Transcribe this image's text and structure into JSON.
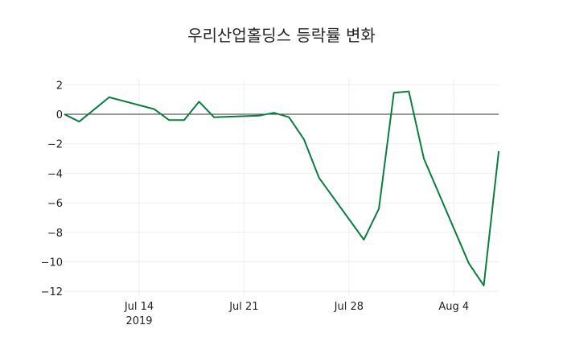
{
  "chart_data": {
    "type": "line",
    "title": "우리산업홀딩스 등락률 변화",
    "xlabel": "",
    "ylabel": "",
    "ylim": [
      -12.2,
      2.6
    ],
    "xlim": [
      "2019-07-09",
      "2019-08-07"
    ],
    "grid": true,
    "legend": "none",
    "line_color": "#0a7d3e",
    "x_ticks": [
      {
        "date": "2019-07-14",
        "label": "Jul 14",
        "sublabel": "2019"
      },
      {
        "date": "2019-07-21",
        "label": "Jul 21",
        "sublabel": ""
      },
      {
        "date": "2019-07-28",
        "label": "Jul 28",
        "sublabel": ""
      },
      {
        "date": "2019-08-04",
        "label": "Aug 4",
        "sublabel": ""
      }
    ],
    "y_ticks": [
      2,
      0,
      -2,
      -4,
      -6,
      -8,
      -10,
      -12
    ],
    "y_tick_labels": [
      "2",
      "0",
      "−2",
      "−4",
      "−6",
      "−8",
      "−10",
      "−12"
    ],
    "series": [
      {
        "name": "등락률",
        "x": [
          "2019-07-09",
          "2019-07-10",
          "2019-07-12",
          "2019-07-15",
          "2019-07-16",
          "2019-07-17",
          "2019-07-18",
          "2019-07-19",
          "2019-07-22",
          "2019-07-23",
          "2019-07-24",
          "2019-07-25",
          "2019-07-26",
          "2019-07-29",
          "2019-07-30",
          "2019-07-31",
          "2019-08-01",
          "2019-08-02",
          "2019-08-05",
          "2019-08-06",
          "2019-08-07"
        ],
        "values": [
          0.0,
          -0.5,
          1.15,
          0.35,
          -0.4,
          -0.4,
          0.85,
          -0.2,
          -0.1,
          0.1,
          -0.2,
          -1.7,
          -4.3,
          -8.5,
          -6.4,
          1.45,
          1.55,
          -3.0,
          -10.1,
          -11.6,
          -2.5
        ]
      }
    ]
  }
}
